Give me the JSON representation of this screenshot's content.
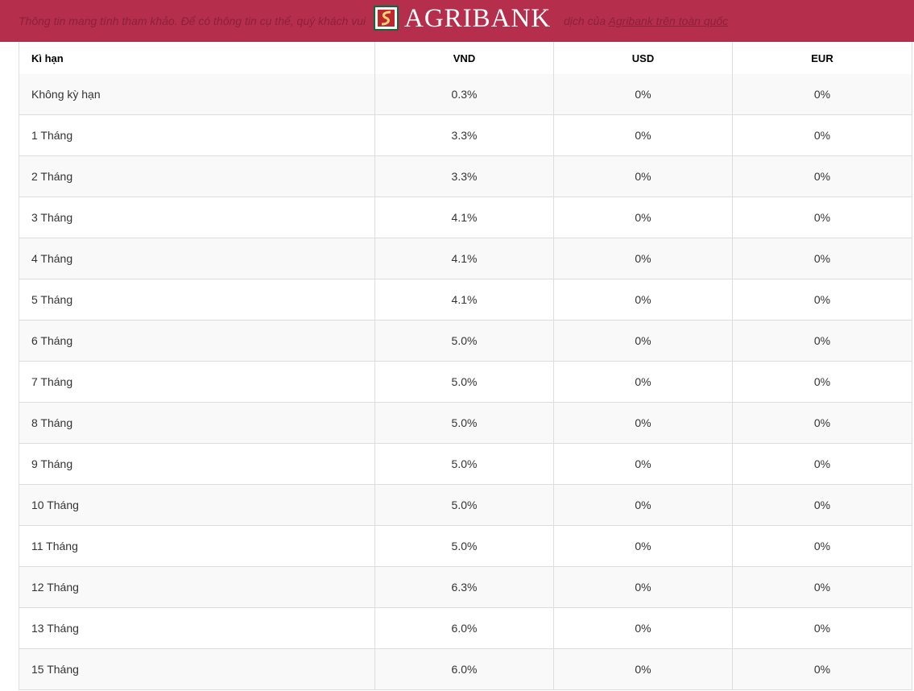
{
  "header": {
    "brand": "AGRIBANK"
  },
  "notice": {
    "text_start": "Thông tin mang tính tham khảo. Để có thông tin cụ thể, quý khách vui",
    "text_end": "dịch của",
    "link": "Agribank trên toàn quốc"
  },
  "table": {
    "columns": [
      "Kì hạn",
      "VND",
      "USD",
      "EUR"
    ],
    "rows": [
      [
        "Không kỳ hạn",
        "0.3%",
        "0%",
        "0%"
      ],
      [
        "1 Tháng",
        "3.3%",
        "0%",
        "0%"
      ],
      [
        "2 Tháng",
        "3.3%",
        "0%",
        "0%"
      ],
      [
        "3 Tháng",
        "4.1%",
        "0%",
        "0%"
      ],
      [
        "4 Tháng",
        "4.1%",
        "0%",
        "0%"
      ],
      [
        "5 Tháng",
        "4.1%",
        "0%",
        "0%"
      ],
      [
        "6 Tháng",
        "5.0%",
        "0%",
        "0%"
      ],
      [
        "7 Tháng",
        "5.0%",
        "0%",
        "0%"
      ],
      [
        "8 Tháng",
        "5.0%",
        "0%",
        "0%"
      ],
      [
        "9 Tháng",
        "5.0%",
        "0%",
        "0%"
      ],
      [
        "10 Tháng",
        "5.0%",
        "0%",
        "0%"
      ],
      [
        "11 Tháng",
        "5.0%",
        "0%",
        "0%"
      ],
      [
        "12 Tháng",
        "6.3%",
        "0%",
        "0%"
      ],
      [
        "13 Tháng",
        "6.0%",
        "0%",
        "0%"
      ],
      [
        "15 Tháng",
        "6.0%",
        "0%",
        "0%"
      ]
    ]
  }
}
